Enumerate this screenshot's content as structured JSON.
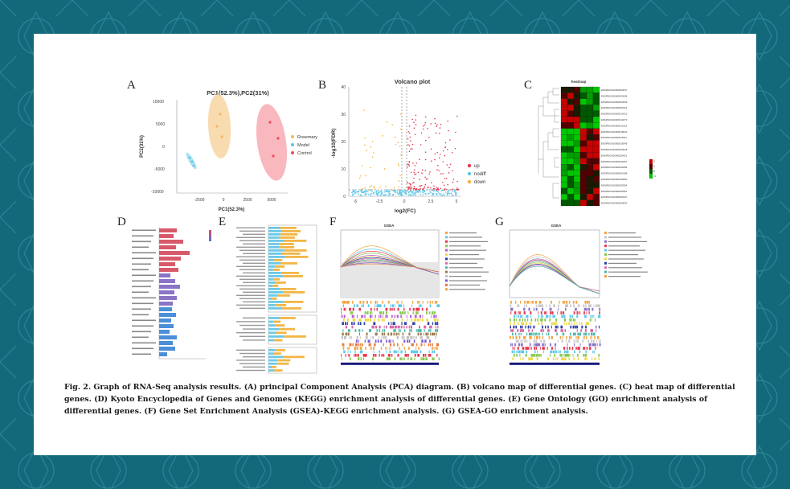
{
  "panels": {
    "A": {
      "letter": "A",
      "title": "PC1(52.3%),PC2(31%)",
      "xlabel": "PC1(52.3%)",
      "ylabel": "PC2(31%)",
      "xticks": [
        "-2500",
        "0",
        "2500",
        "5000"
      ],
      "yticks": [
        "10000",
        "5000",
        "0",
        "-5000",
        "-10000"
      ],
      "legend": [
        {
          "label": "Rosemary",
          "color": "#f5b85c"
        },
        {
          "label": "Model",
          "color": "#55c8e8"
        },
        {
          "label": "Control",
          "color": "#ef4b5a"
        }
      ]
    },
    "B": {
      "letter": "B",
      "title": "Volcano plot",
      "xlabel": "log2(FC)",
      "ylabel": "-log10(FDR)",
      "xticks": [
        "-5",
        "-2.5",
        "0",
        "2.5",
        "5"
      ],
      "yticks": [
        "0",
        "10",
        "20",
        "30",
        "40"
      ],
      "legend": [
        {
          "label": "up",
          "color": "#e8384f"
        },
        {
          "label": "nodiff",
          "color": "#5bc8ea"
        },
        {
          "label": "down",
          "color": "#f4b13e"
        }
      ]
    },
    "C": {
      "letter": "C",
      "title": "heatmap",
      "genes": [
        "ENSRNOG00000003037",
        "ENSRNOG00000003096",
        "ENSRNOG00000003099",
        "ENSRNOG00000003316",
        "ENSRNOG00000013412",
        "ENSRNOG00000014673",
        "ENSRNOG00000015161",
        "ENSRNOG00000018032",
        "ENSRNOG00000018111",
        "ENSRNOG00000018346",
        "ENSRNOG00000020028",
        "ENSRNOG00000020421",
        "ENSRNOG00000030497",
        "ENSRNOG00000031894",
        "ENSRNOG00000034188",
        "ENSRNOG00000036890",
        "ENSRNOG00000039294",
        "ENSRNOG00000052581",
        "ENSRNOG00000053227",
        "ENSRNOG00000060833"
      ],
      "scale": [
        "2",
        "1",
        "0",
        "-1"
      ]
    },
    "D": {
      "letter": "D"
    },
    "E": {
      "letter": "E"
    },
    "F": {
      "letter": "F",
      "title": "GSEA"
    },
    "G": {
      "letter": "G",
      "title": "GSEA"
    }
  },
  "caption": {
    "label": "Fig. 2.",
    "text": "Graph of RNA-Seq analysis results. (A) principal Component Analysis (PCA) diagram. (B) volcano map of differential genes. (C) heat map of differential genes. (D) Kyoto Encyclopedia of Genes and Genomes (KEGG) enrichment analysis of differential genes. (E) Gene Ontology (GO) enrichment analysis of differential genes. (F) Gene Set Enrichment Analysis (GSEA)-KEGG enrichment analysis. (G) GSEA-GO enrichment analysis."
  }
}
